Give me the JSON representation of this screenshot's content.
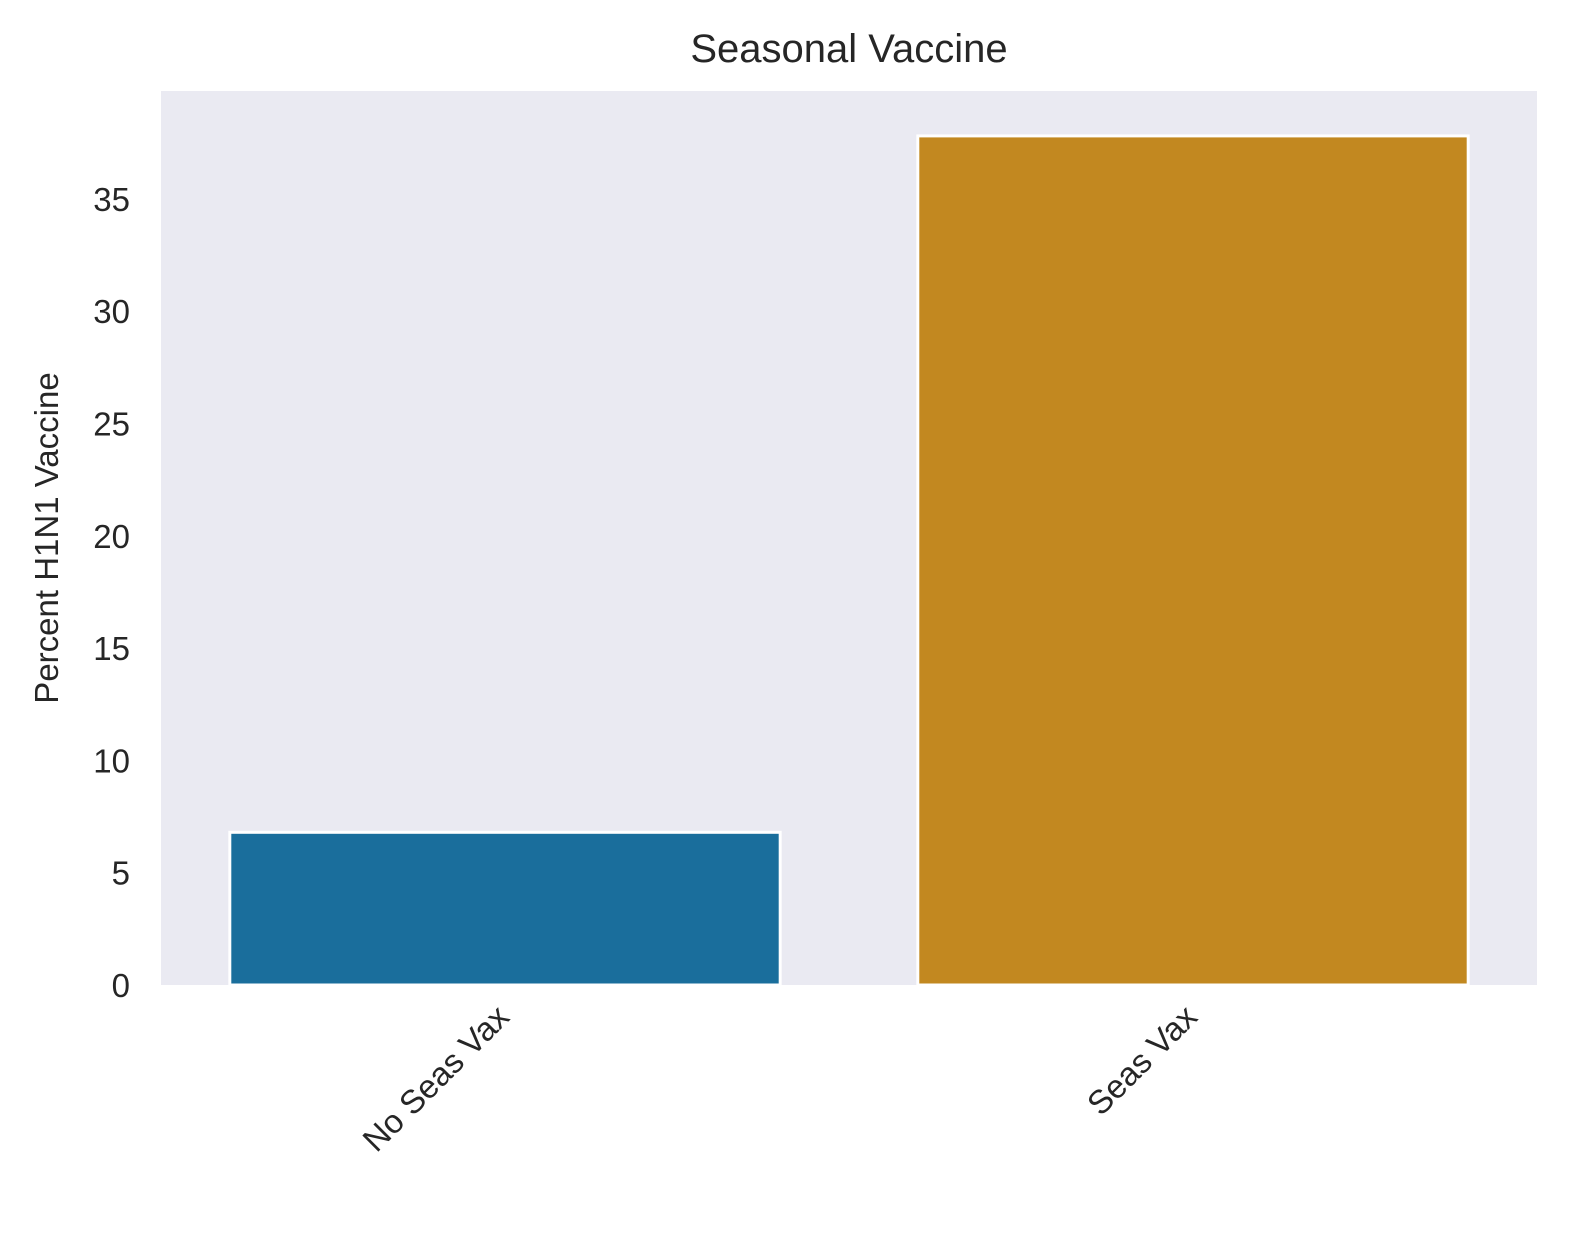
{
  "chart_data": {
    "type": "bar",
    "title": "Seasonal Vaccine",
    "xlabel": "",
    "ylabel": "Percent H1N1 Vaccine",
    "categories": [
      "No Seas Vax",
      "Seas Vax"
    ],
    "values": [
      6.8,
      37.8
    ],
    "colors": [
      "#1a6e9c",
      "#c28820"
    ],
    "ylim": [
      0,
      39.8
    ],
    "yticks": [
      0,
      5,
      10,
      15,
      20,
      25,
      30,
      35
    ],
    "xtick_rotation": 45,
    "grid": false,
    "legend": "none",
    "background": "#eaeaf2"
  }
}
